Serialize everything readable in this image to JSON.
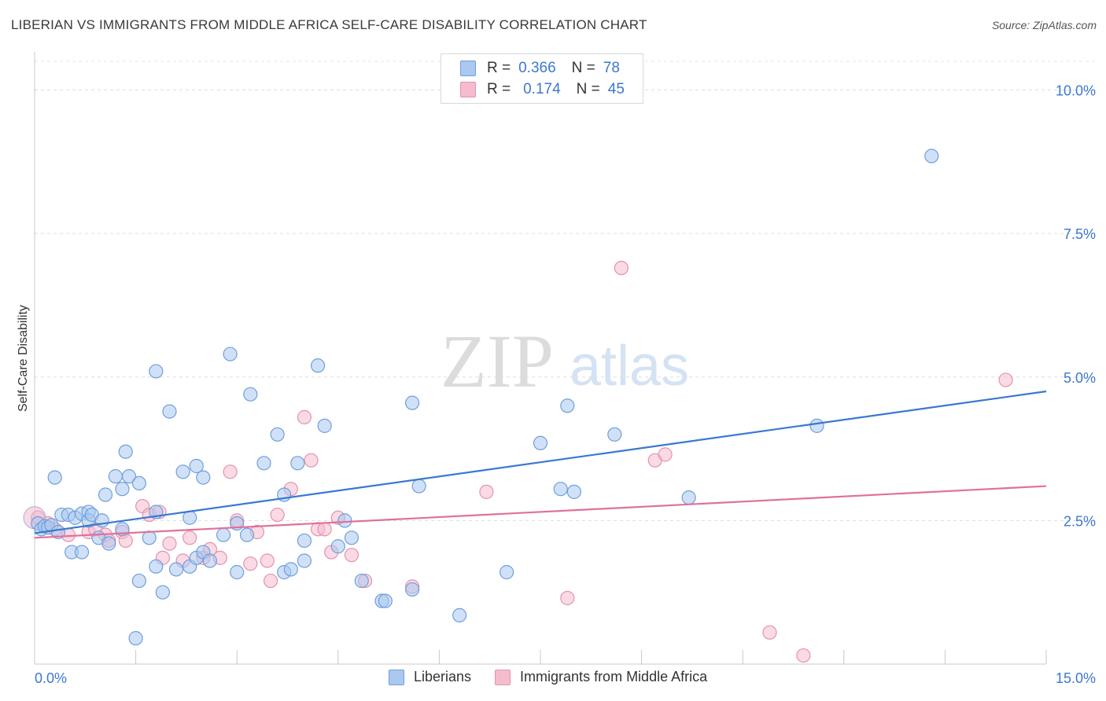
{
  "header": {
    "title": "LIBERIAN VS IMMIGRANTS FROM MIDDLE AFRICA SELF-CARE DISABILITY CORRELATION CHART",
    "source": "Source: ZipAtlas.com"
  },
  "legend": {
    "r_label": "R =",
    "n_label": "N =",
    "rows": [
      {
        "r": "0.366",
        "n": "78"
      },
      {
        "r": "0.174",
        "n": "45"
      }
    ]
  },
  "watermark": {
    "zip": "ZIP",
    "atlas": "atlas"
  },
  "colors": {
    "liberians_fill": "#aac8f0",
    "liberians_stroke": "#6f9fdc",
    "liberians_line": "#3a78d2",
    "immigrants_fill": "#f5bccd",
    "immigrants_stroke": "#e592ae",
    "immigrants_line": "#e0709a",
    "tick_label": "#3b78d0"
  },
  "chart_data": {
    "type": "scatter",
    "title": "LIBERIAN VS IMMIGRANTS FROM MIDDLE AFRICA SELF-CARE DISABILITY CORRELATION CHART",
    "xlabel": "",
    "ylabel": "Self-Care Disability",
    "xlim": [
      0,
      15
    ],
    "ylim": [
      0,
      10.5
    ],
    "x_tick_labels": [
      "0.0%",
      "15.0%"
    ],
    "y_ticks": [
      2.5,
      5.0,
      7.5,
      10.0
    ],
    "y_tick_labels": [
      "2.5%",
      "5.0%",
      "7.5%",
      "10.0%"
    ],
    "grid": true,
    "legend_position": "top-center",
    "series": [
      {
        "name": "Liberians",
        "r": 0.366,
        "n": 78,
        "trend": [
          [
            0,
            2.28
          ],
          [
            15,
            4.75
          ]
        ],
        "points": [
          [
            0.05,
            2.45
          ],
          [
            0.1,
            2.35
          ],
          [
            0.15,
            2.4
          ],
          [
            0.2,
            2.38
          ],
          [
            0.25,
            2.42
          ],
          [
            0.3,
            3.25
          ],
          [
            0.35,
            2.3
          ],
          [
            0.4,
            2.6
          ],
          [
            0.5,
            2.6
          ],
          [
            0.55,
            1.95
          ],
          [
            0.6,
            2.55
          ],
          [
            0.7,
            2.62
          ],
          [
            0.7,
            1.95
          ],
          [
            0.8,
            2.65
          ],
          [
            0.8,
            2.5
          ],
          [
            0.85,
            2.6
          ],
          [
            0.95,
            2.2
          ],
          [
            1.0,
            2.5
          ],
          [
            1.05,
            2.95
          ],
          [
            1.1,
            2.1
          ],
          [
            1.2,
            3.27
          ],
          [
            1.3,
            2.35
          ],
          [
            1.3,
            3.05
          ],
          [
            1.35,
            3.7
          ],
          [
            1.4,
            3.27
          ],
          [
            1.5,
            0.45
          ],
          [
            1.55,
            3.15
          ],
          [
            1.55,
            1.45
          ],
          [
            1.7,
            2.2
          ],
          [
            1.8,
            1.7
          ],
          [
            1.8,
            5.1
          ],
          [
            1.8,
            2.65
          ],
          [
            1.9,
            1.25
          ],
          [
            2.0,
            4.4
          ],
          [
            2.1,
            1.65
          ],
          [
            2.2,
            3.35
          ],
          [
            2.3,
            2.55
          ],
          [
            2.3,
            1.7
          ],
          [
            2.4,
            1.85
          ],
          [
            2.4,
            3.45
          ],
          [
            2.5,
            1.95
          ],
          [
            2.5,
            3.25
          ],
          [
            2.6,
            1.8
          ],
          [
            2.8,
            2.25
          ],
          [
            2.9,
            5.4
          ],
          [
            3.0,
            2.45
          ],
          [
            3.0,
            1.6
          ],
          [
            3.15,
            2.25
          ],
          [
            3.2,
            4.7
          ],
          [
            3.4,
            3.5
          ],
          [
            3.6,
            4.0
          ],
          [
            3.7,
            2.95
          ],
          [
            3.7,
            1.6
          ],
          [
            3.8,
            1.65
          ],
          [
            3.9,
            3.5
          ],
          [
            4.0,
            1.8
          ],
          [
            4.0,
            2.15
          ],
          [
            4.2,
            5.2
          ],
          [
            4.3,
            4.15
          ],
          [
            4.5,
            2.05
          ],
          [
            4.6,
            2.5
          ],
          [
            4.7,
            2.2
          ],
          [
            4.85,
            1.45
          ],
          [
            5.15,
            1.1
          ],
          [
            5.2,
            1.1
          ],
          [
            5.6,
            1.3
          ],
          [
            5.6,
            4.55
          ],
          [
            5.7,
            3.1
          ],
          [
            6.3,
            0.85
          ],
          [
            7.0,
            1.6
          ],
          [
            7.5,
            3.85
          ],
          [
            7.9,
            4.5
          ],
          [
            7.8,
            3.05
          ],
          [
            8.0,
            3.0
          ],
          [
            8.6,
            4.0
          ],
          [
            9.7,
            2.9
          ],
          [
            11.6,
            4.15
          ],
          [
            13.3,
            8.85
          ]
        ]
      },
      {
        "name": "Immigrants from Middle Africa",
        "r": 0.174,
        "n": 45,
        "trend": [
          [
            0,
            2.2
          ],
          [
            15,
            3.1
          ]
        ],
        "points": [
          [
            0.05,
            2.55
          ],
          [
            0.2,
            2.45
          ],
          [
            0.3,
            2.35
          ],
          [
            0.5,
            2.25
          ],
          [
            0.8,
            2.3
          ],
          [
            0.9,
            2.35
          ],
          [
            1.05,
            2.25
          ],
          [
            1.1,
            2.15
          ],
          [
            1.3,
            2.3
          ],
          [
            1.35,
            2.15
          ],
          [
            1.6,
            2.75
          ],
          [
            1.7,
            2.6
          ],
          [
            1.85,
            2.65
          ],
          [
            1.9,
            1.85
          ],
          [
            2.0,
            2.1
          ],
          [
            2.2,
            1.8
          ],
          [
            2.3,
            2.2
          ],
          [
            2.5,
            1.85
          ],
          [
            2.6,
            2.0
          ],
          [
            2.75,
            1.85
          ],
          [
            2.9,
            3.35
          ],
          [
            3.0,
            2.5
          ],
          [
            3.2,
            1.75
          ],
          [
            3.3,
            2.3
          ],
          [
            3.45,
            1.8
          ],
          [
            3.5,
            1.45
          ],
          [
            3.6,
            2.6
          ],
          [
            3.8,
            3.05
          ],
          [
            4.0,
            4.3
          ],
          [
            4.1,
            3.55
          ],
          [
            4.2,
            2.35
          ],
          [
            4.3,
            2.35
          ],
          [
            4.4,
            1.95
          ],
          [
            4.5,
            2.55
          ],
          [
            4.7,
            1.9
          ],
          [
            4.9,
            1.45
          ],
          [
            5.6,
            1.35
          ],
          [
            6.7,
            3.0
          ],
          [
            7.9,
            1.15
          ],
          [
            8.7,
            6.9
          ],
          [
            9.2,
            3.55
          ],
          [
            9.35,
            3.65
          ],
          [
            10.9,
            0.55
          ],
          [
            11.4,
            0.15
          ],
          [
            14.4,
            4.95
          ]
        ]
      }
    ]
  }
}
